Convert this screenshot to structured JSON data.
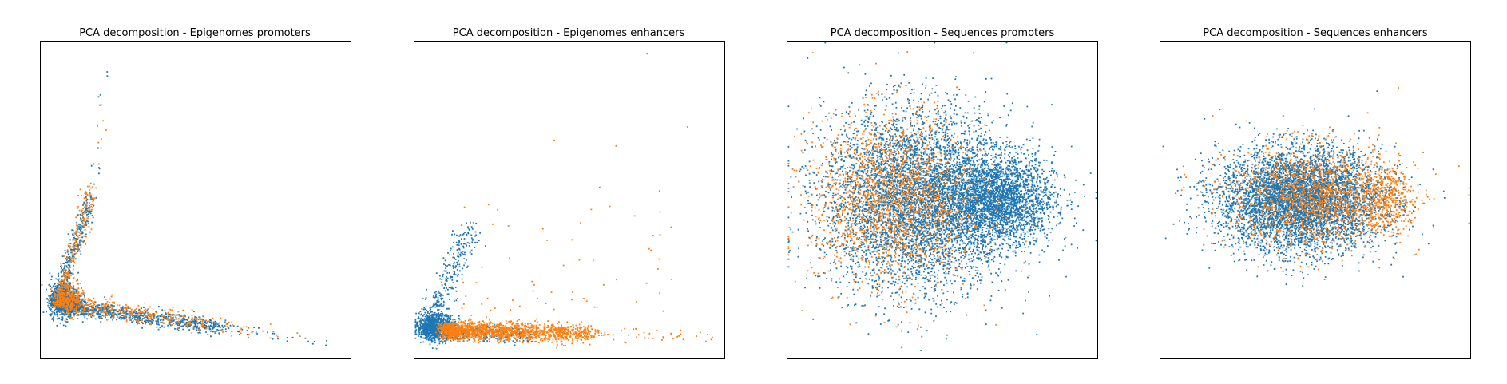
{
  "colors": {
    "series_a": "#1f77b4",
    "series_b": "#ff7f0e"
  },
  "chart_data": [
    {
      "type": "scatter",
      "title": "PCA decomposition - Epigenomes promoters",
      "axes_visible": false,
      "xlim": [
        0,
        1
      ],
      "ylim": [
        0,
        1
      ],
      "series": [
        {
          "color": "#1f77b4",
          "clusters": [
            {
              "kind": "streak",
              "from": [
                0.05,
                0.17
              ],
              "to": [
                0.58,
                0.1
              ],
              "spread": 0.012,
              "n": 900
            },
            {
              "kind": "streak",
              "from": [
                0.05,
                0.17
              ],
              "to": [
                0.16,
                0.5
              ],
              "spread": 0.012,
              "n": 500
            },
            {
              "kind": "blob",
              "center": [
                0.08,
                0.18
              ],
              "sd": [
                0.025,
                0.025
              ],
              "n": 700
            },
            {
              "kind": "streak",
              "from": [
                0.58,
                0.1
              ],
              "to": [
                0.92,
                0.05
              ],
              "spread": 0.01,
              "n": 40
            },
            {
              "kind": "streak",
              "from": [
                0.16,
                0.5
              ],
              "to": [
                0.23,
                0.96
              ],
              "spread": 0.01,
              "n": 20
            }
          ]
        },
        {
          "color": "#ff7f0e",
          "clusters": [
            {
              "kind": "streak",
              "from": [
                0.06,
                0.18
              ],
              "to": [
                0.55,
                0.11
              ],
              "spread": 0.014,
              "n": 420
            },
            {
              "kind": "streak",
              "from": [
                0.06,
                0.18
              ],
              "to": [
                0.16,
                0.53
              ],
              "spread": 0.012,
              "n": 240
            },
            {
              "kind": "blob",
              "center": [
                0.09,
                0.19
              ],
              "sd": [
                0.025,
                0.025
              ],
              "n": 200
            },
            {
              "kind": "streak",
              "from": [
                0.55,
                0.11
              ],
              "to": [
                0.95,
                0.05
              ],
              "spread": 0.012,
              "n": 30
            },
            {
              "kind": "streak",
              "from": [
                0.16,
                0.53
              ],
              "to": [
                0.2,
                0.81
              ],
              "spread": 0.01,
              "n": 14
            }
          ]
        }
      ]
    },
    {
      "type": "scatter",
      "title": "PCA decomposition - Epigenomes enhancers",
      "axes_visible": false,
      "xlim": [
        0,
        1
      ],
      "ylim": [
        0,
        1
      ],
      "series": [
        {
          "color": "#1f77b4",
          "clusters": [
            {
              "kind": "blob",
              "center": [
                0.07,
                0.1
              ],
              "sd": [
                0.03,
                0.02
              ],
              "n": 900
            },
            {
              "kind": "streak",
              "from": [
                0.04,
                0.09
              ],
              "to": [
                0.19,
                0.42
              ],
              "spread": 0.02,
              "n": 380
            },
            {
              "kind": "streak",
              "from": [
                0.04,
                0.09
              ],
              "to": [
                0.38,
                0.07
              ],
              "spread": 0.012,
              "n": 400
            }
          ]
        },
        {
          "color": "#ff7f0e",
          "clusters": [
            {
              "kind": "streak",
              "from": [
                0.1,
                0.09
              ],
              "to": [
                0.56,
                0.08
              ],
              "spread": 0.014,
              "n": 1600
            },
            {
              "kind": "streak",
              "from": [
                0.56,
                0.08
              ],
              "to": [
                0.96,
                0.07
              ],
              "spread": 0.01,
              "n": 60
            },
            {
              "kind": "scatter",
              "box": [
                0.15,
                0.15,
                0.7,
                0.7
              ],
              "n": 60
            },
            {
              "kind": "points",
              "xy": [
                [
                  0.75,
                  0.96
                ],
                [
                  0.88,
                  0.73
                ],
                [
                  0.65,
                  0.67
                ],
                [
                  0.71,
                  0.45
                ],
                [
                  0.63,
                  0.48
                ]
              ]
            }
          ]
        }
      ]
    },
    {
      "type": "scatter",
      "title": "PCA decomposition - Sequences promoters",
      "axes_visible": false,
      "xlim": [
        0,
        1
      ],
      "ylim": [
        0,
        1
      ],
      "series": [
        {
          "color": "#1f77b4",
          "clusters": [
            {
              "kind": "blob",
              "center": [
                0.42,
                0.5
              ],
              "sd": [
                0.15,
                0.14
              ],
              "n": 7500
            },
            {
              "kind": "blob",
              "center": [
                0.68,
                0.5
              ],
              "sd": [
                0.09,
                0.07
              ],
              "n": 2500
            }
          ]
        },
        {
          "color": "#ff7f0e",
          "clusters": [
            {
              "kind": "blob",
              "center": [
                0.34,
                0.5
              ],
              "sd": [
                0.13,
                0.13
              ],
              "n": 1800
            }
          ]
        }
      ]
    },
    {
      "type": "scatter",
      "title": "PCA decomposition - Sequences enhancers",
      "axes_visible": false,
      "xlim": [
        0,
        1
      ],
      "ylim": [
        0,
        1
      ],
      "series": [
        {
          "color": "#1f77b4",
          "clusters": [
            {
              "kind": "blob",
              "center": [
                0.45,
                0.5
              ],
              "sd": [
                0.13,
                0.08
              ],
              "n": 6000
            }
          ]
        },
        {
          "color": "#ff7f0e",
          "clusters": [
            {
              "kind": "blob",
              "center": [
                0.5,
                0.51
              ],
              "sd": [
                0.14,
                0.08
              ],
              "n": 1500
            },
            {
              "kind": "blob",
              "center": [
                0.72,
                0.5
              ],
              "sd": [
                0.05,
                0.05
              ],
              "n": 400
            }
          ]
        }
      ]
    }
  ]
}
